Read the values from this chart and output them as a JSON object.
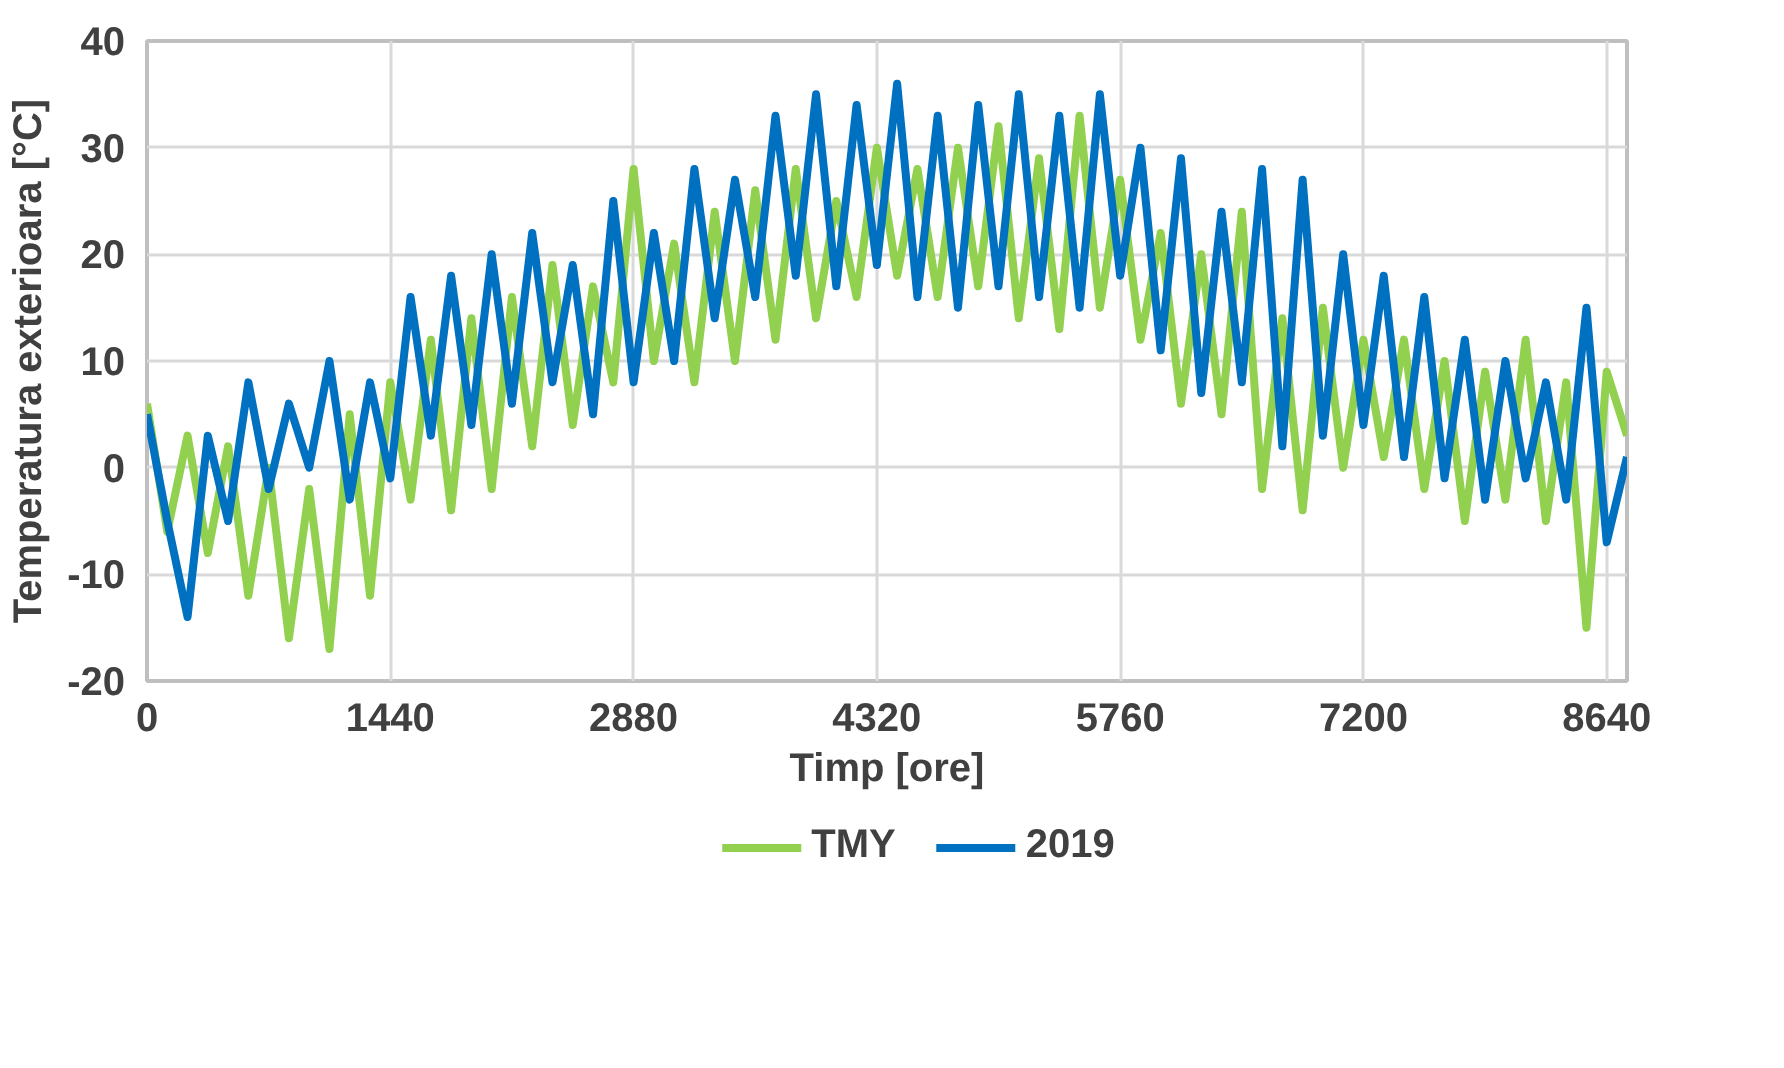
{
  "chart_data": {
    "type": "line",
    "xlabel": "Timp [ore]",
    "ylabel": "Temperatura exterioara [°C]",
    "xlim": [
      0,
      8760
    ],
    "xticks": [
      0,
      1440,
      2880,
      4320,
      5760,
      7200,
      8640
    ],
    "ylim": [
      -20,
      40
    ],
    "yticks": [
      -20,
      -10,
      0,
      10,
      20,
      30,
      40
    ],
    "grid": true,
    "legend": "bottom",
    "line_style": "solid",
    "x": [
      0,
      120,
      240,
      360,
      480,
      600,
      720,
      840,
      960,
      1080,
      1200,
      1320,
      1440,
      1560,
      1680,
      1800,
      1920,
      2040,
      2160,
      2280,
      2400,
      2520,
      2640,
      2760,
      2880,
      3000,
      3120,
      3240,
      3360,
      3480,
      3600,
      3720,
      3840,
      3960,
      4080,
      4200,
      4320,
      4440,
      4560,
      4680,
      4800,
      4920,
      5040,
      5160,
      5280,
      5400,
      5520,
      5640,
      5760,
      5880,
      6000,
      6120,
      6240,
      6360,
      6480,
      6600,
      6720,
      6840,
      6960,
      7080,
      7200,
      7320,
      7440,
      7560,
      7680,
      7800,
      7920,
      8040,
      8160,
      8280,
      8400,
      8520,
      8640,
      8760
    ],
    "series": [
      {
        "name": "TMY",
        "color": "#92d050",
        "values": [
          6,
          -6,
          3,
          -8,
          2,
          -12,
          0,
          -16,
          -2,
          -17,
          5,
          -12,
          8,
          -3,
          12,
          -4,
          14,
          -2,
          16,
          2,
          19,
          4,
          17,
          8,
          28,
          10,
          21,
          8,
          24,
          10,
          26,
          12,
          28,
          14,
          25,
          16,
          30,
          18,
          28,
          16,
          30,
          17,
          32,
          14,
          29,
          13,
          33,
          15,
          27,
          12,
          22,
          6,
          20,
          5,
          24,
          -2,
          14,
          -4,
          15,
          0,
          12,
          1,
          12,
          -2,
          10,
          -5,
          9,
          -3,
          12,
          -5,
          8,
          -15,
          9,
          3
        ]
      },
      {
        "name": "2019",
        "color": "#0070c0",
        "values": [
          5,
          -5,
          -14,
          3,
          -5,
          8,
          -2,
          6,
          0,
          10,
          -3,
          8,
          -1,
          16,
          3,
          18,
          4,
          20,
          6,
          22,
          8,
          19,
          5,
          25,
          8,
          22,
          10,
          28,
          14,
          27,
          16,
          33,
          18,
          35,
          17,
          34,
          19,
          36,
          16,
          33,
          15,
          34,
          17,
          35,
          16,
          33,
          15,
          35,
          18,
          30,
          11,
          29,
          7,
          24,
          8,
          28,
          2,
          27,
          3,
          20,
          4,
          18,
          1,
          16,
          -1,
          12,
          -3,
          10,
          -1,
          8,
          -3,
          15,
          -7,
          1
        ]
      }
    ]
  }
}
